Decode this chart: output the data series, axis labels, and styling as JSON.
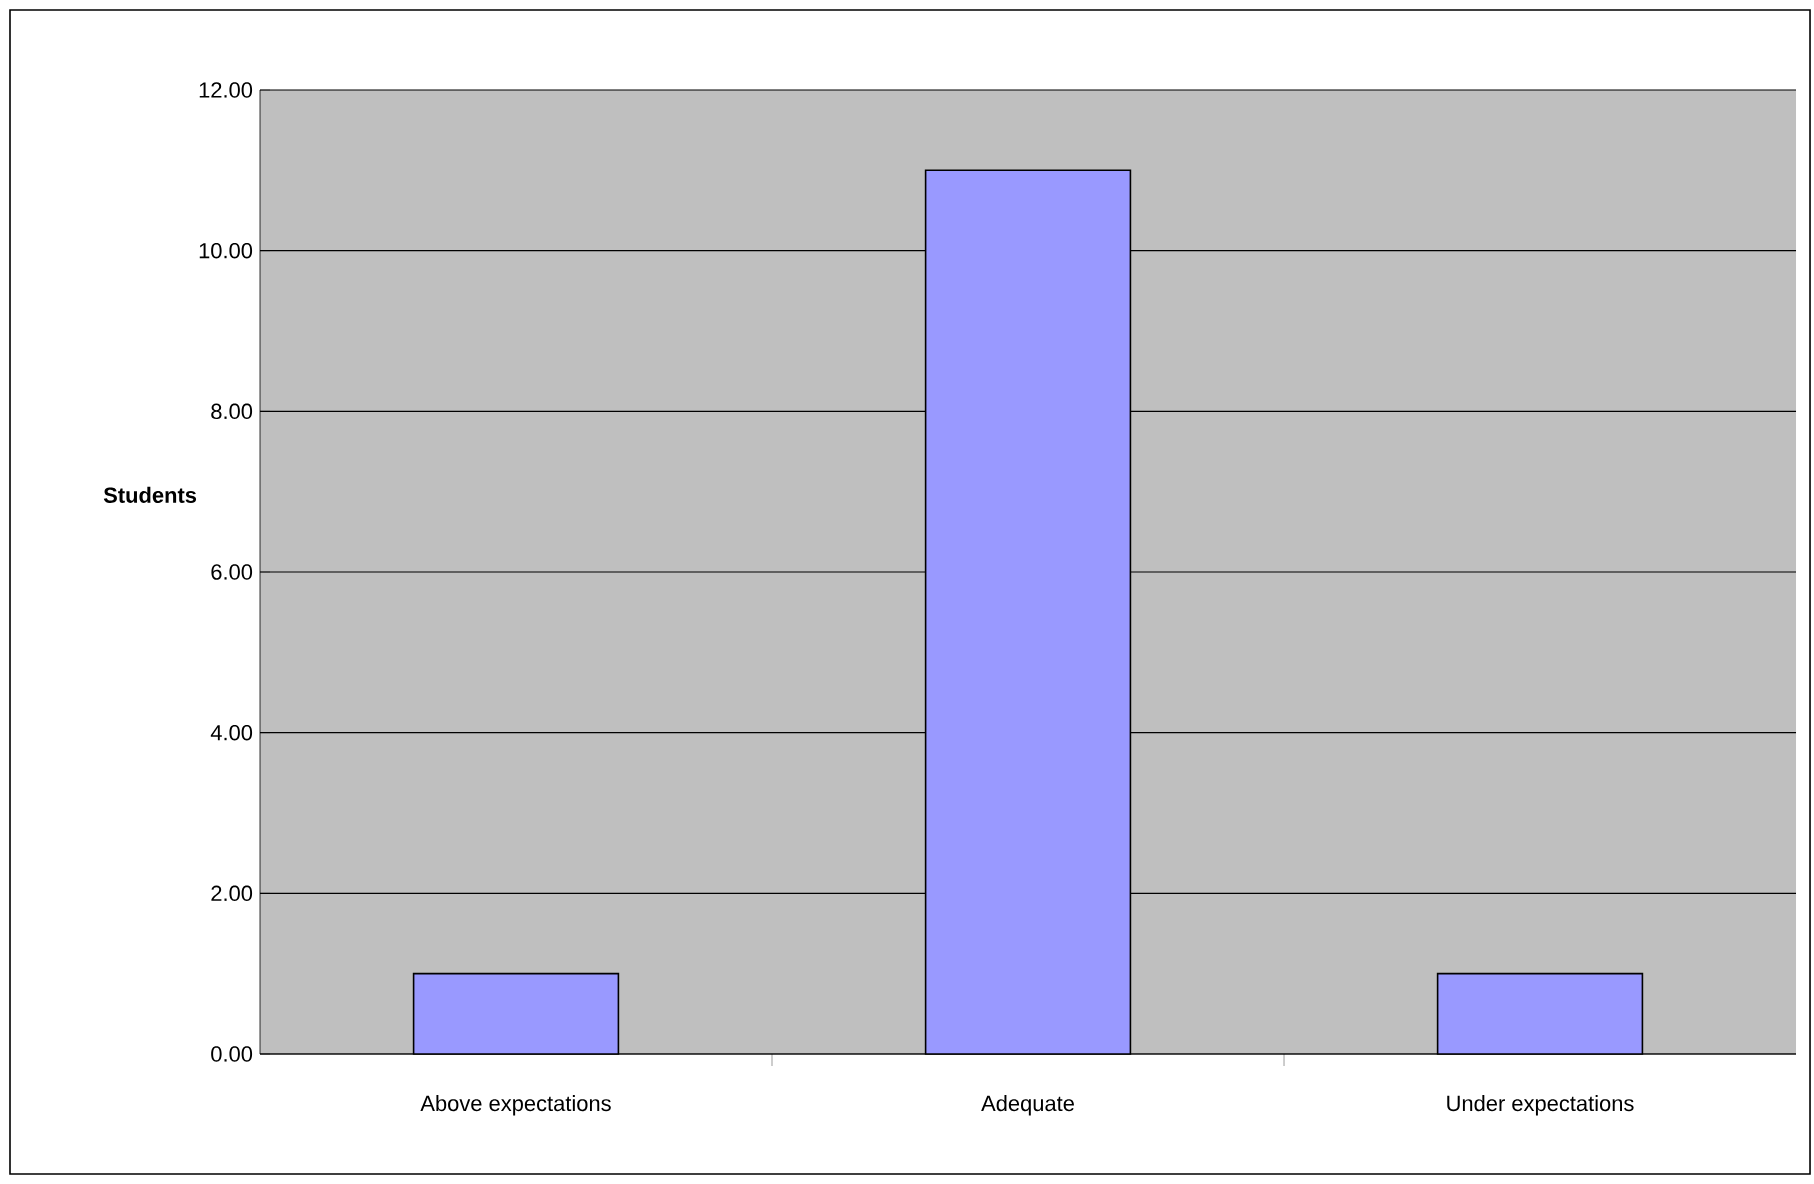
{
  "chart_data": {
    "type": "bar",
    "ylabel": "Students",
    "categories": [
      "Above expectations",
      "Adequate",
      "Under expectations"
    ],
    "values": [
      1,
      11,
      1
    ],
    "color": "#9999ff",
    "ylim": [
      0,
      12
    ],
    "yticks": [
      {
        "value": 0,
        "label": "0.00"
      },
      {
        "value": 2,
        "label": "2.00"
      },
      {
        "value": 4,
        "label": "4.00"
      },
      {
        "value": 6,
        "label": "6.00"
      },
      {
        "value": 8,
        "label": "8.00"
      },
      {
        "value": 10,
        "label": "10.00"
      },
      {
        "value": 12,
        "label": "12.00"
      }
    ],
    "grid": "y"
  }
}
